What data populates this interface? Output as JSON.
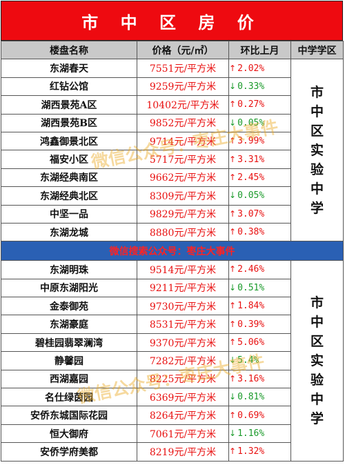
{
  "title": "市 中 区 房 价",
  "headers": {
    "name": "楼盘名称",
    "price": "价格（元/㎡）",
    "change": "环比上月",
    "school": "中学学区"
  },
  "group1": {
    "school": [
      "市",
      "中",
      "区",
      "实",
      "验",
      "中",
      "学"
    ],
    "rows": [
      {
        "name": "东湖春天",
        "price": "7551元/平方米",
        "dir": "up",
        "change": "2.02%"
      },
      {
        "name": "红钻公馆",
        "price": "9259元/平方米",
        "dir": "down",
        "change": "0.33%"
      },
      {
        "name": "湖西景苑A区",
        "price": "10402元/平方米",
        "dir": "up",
        "change": "0.27%"
      },
      {
        "name": "湖西景苑B区",
        "price": "9852元/平方米",
        "dir": "down",
        "change": "0.05%"
      },
      {
        "name": "鸿鑫御景北区",
        "price": "9714元/平方米",
        "dir": "up",
        "change": "3.99%"
      },
      {
        "name": "福安小区",
        "price": "5717元/平方米",
        "dir": "up",
        "change": "3.31%"
      },
      {
        "name": "东湖经典南区",
        "price": "9662元/平方米",
        "dir": "up",
        "change": "2.45%"
      },
      {
        "name": "东湖经典北区",
        "price": "8309元/平方米",
        "dir": "down",
        "change": "0.05%"
      },
      {
        "name": "中坚一品",
        "price": "9829元/平方米",
        "dir": "up",
        "change": "3.07%"
      },
      {
        "name": "东湖龙城",
        "price": "8880元/平方米",
        "dir": "up",
        "change": "0.38%"
      }
    ]
  },
  "banner": "微信搜索公众号：枣庄大事件",
  "group2": {
    "school": [
      "市",
      "中",
      "区",
      "实",
      "验",
      "中",
      "学"
    ],
    "rows": [
      {
        "name": "东湖明珠",
        "price": "9514元/平方米",
        "dir": "up",
        "change": "2.46%"
      },
      {
        "name": "中原东湖阳光",
        "price": "9211元/平方米",
        "dir": "down",
        "change": "0.51%"
      },
      {
        "name": "金泰御苑",
        "price": "9730元/平方米",
        "dir": "up",
        "change": "1.84%"
      },
      {
        "name": "东湖豪庭",
        "price": "8531元/平方米",
        "dir": "up",
        "change": "0.39%"
      },
      {
        "name": "碧桂园翡翠澜湾",
        "price": "9370元/平方米",
        "dir": "up",
        "change": "5.06%"
      },
      {
        "name": "静馨园",
        "price": "7282元/平方米",
        "dir": "down",
        "change": "5.4%"
      },
      {
        "name": "西湖嘉园",
        "price": "8225元/平方米",
        "dir": "up",
        "change": "3.16%"
      },
      {
        "name": "名仕绿茵园",
        "price": "6369元/平方米",
        "dir": "down",
        "change": "0.81%"
      },
      {
        "name": "安侨东城国际花园",
        "price": "8264元/平方米",
        "dir": "up",
        "change": "0.69%"
      },
      {
        "name": "恒大御府",
        "price": "7061元/平方米",
        "dir": "down",
        "change": "1.16%"
      },
      {
        "name": "安侨学府美都",
        "price": "8219元/平方米",
        "dir": "up",
        "change": "1.32%"
      }
    ]
  },
  "watermark": "微信公众号：枣庄大事件",
  "colors": {
    "up": "#e81010",
    "down": "#1a9a2a",
    "title_bg": "#ee0a10",
    "banner_bg": "#2a60b4",
    "header_bg": "#c9c9c9"
  },
  "icons": {
    "up": "arrow-up-icon",
    "down": "arrow-down-icon"
  }
}
